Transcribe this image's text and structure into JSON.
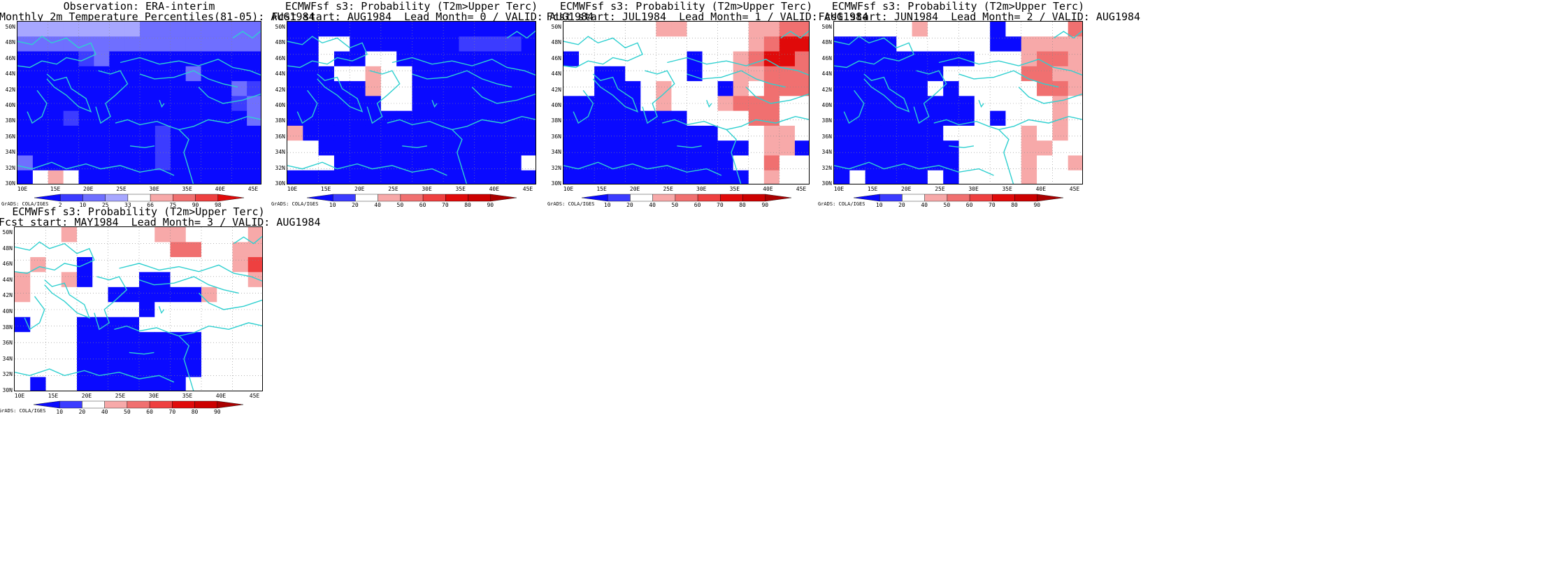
{
  "colors": {
    "coast": "#2fd0d0",
    "blue_dark": "#0a0aff",
    "blue_mid": "#3c3cff",
    "blue_light": "#6f6fff",
    "blue_pale": "#a7a7ff",
    "red_pale": "#f7a9a9",
    "red_mid": "#f07070",
    "red": "#ee4040",
    "red_dark": "#e00a0a",
    "white": "#ffffff"
  },
  "grads_label": "GrADS: COLA/IGES",
  "lat_labels": [
    "50N",
    "48N",
    "46N",
    "44N",
    "42N",
    "40N",
    "38N",
    "36N",
    "34N",
    "32N",
    "30N"
  ],
  "lon_labels": [
    "10E",
    "15E",
    "20E",
    "25E",
    "30E",
    "35E",
    "40E",
    "45E"
  ],
  "panels": [
    {
      "title": "Observation: ERA-interim\nMonthly 2m Temperature Percentiles(81-05): AUG1984",
      "colorbar_labels": [
        "2",
        "10",
        "25",
        "33",
        "66",
        "75",
        "90",
        "98"
      ],
      "colorbar_colors": [
        "#0a0aff",
        "#3c3cff",
        "#6f6fff",
        "#a7a7ff",
        "#ffffff",
        "#f7a9a9",
        "#f07070",
        "#ee4040",
        "#e00a0a"
      ]
    },
    {
      "title": "ECMWFsf s3: Probability (T2m>Upper Terc)\nFcst start: AUG1984  Lead Month= 0 / VALID: AUG1984",
      "colorbar_labels": [
        "10",
        "20",
        "40",
        "50",
        "60",
        "70",
        "80",
        "90"
      ],
      "colorbar_colors": [
        "#0a0aff",
        "#3c3cff",
        "#ffffff",
        "#f7a9a9",
        "#f07070",
        "#ee4040",
        "#e00a0a",
        "#cc0000",
        "#aa0000"
      ]
    },
    {
      "title": "ECMWFsf s3: Probability (T2m>Upper Terc)\nFcst start: JUL1984  Lead Month= 1 / VALID: AUG1984",
      "colorbar_labels": [
        "10",
        "20",
        "40",
        "50",
        "60",
        "70",
        "80",
        "90"
      ],
      "colorbar_colors": [
        "#0a0aff",
        "#3c3cff",
        "#ffffff",
        "#f7a9a9",
        "#f07070",
        "#ee4040",
        "#e00a0a",
        "#cc0000",
        "#aa0000"
      ]
    },
    {
      "title": "ECMWFsf s3: Probability (T2m>Upper Terc)\nFcst start: JUN1984  Lead Month= 2 / VALID: AUG1984",
      "colorbar_labels": [
        "10",
        "20",
        "40",
        "50",
        "60",
        "70",
        "80",
        "90"
      ],
      "colorbar_colors": [
        "#0a0aff",
        "#3c3cff",
        "#ffffff",
        "#f7a9a9",
        "#f07070",
        "#ee4040",
        "#e00a0a",
        "#cc0000",
        "#aa0000"
      ]
    },
    {
      "title": "ECMWFsf s3: Probability (T2m>Upper Terc)\nFcst start: MAY1984  Lead Month= 3 / VALID: AUG1984",
      "colorbar_labels": [
        "10",
        "20",
        "40",
        "50",
        "60",
        "70",
        "80",
        "90"
      ],
      "colorbar_colors": [
        "#0a0aff",
        "#3c3cff",
        "#ffffff",
        "#f7a9a9",
        "#f07070",
        "#ee4040",
        "#e00a0a",
        "#cc0000",
        "#aa0000"
      ]
    }
  ],
  "grids": {
    "legend": "B=dark blue b=mid blue l=light blue p=pale blue .=white r=pale red m=mid red R=red D=dark red",
    "panel0": [
      "ppppppppllllllll",
      "llllllllllllllll",
      "BBBBblBBBBBBBBBB",
      "BBBBBBBBBBBlBBBB",
      "BBBBBBBBBBBBBBlb",
      "BBBBBBBBBBBBBBbl",
      "BBBbBBBBBBBBBBBl",
      "BBBBBBBBBbBBBBBB",
      "BBBBBBBBBbBBBBBB",
      "lBBBBBBBBbBBBBBB",
      "B.r.BBBBBBBBBBBB"
    ],
    "panel1": [
      "BBBBBBBBBBBBBBBB",
      "BB..BBBBBBBbbbbB",
      "BB.BB..BBBBBBBBB",
      "BBB..r..BBBBBBBB",
      "BBBBBr..BBBBBBBB",
      "BBBBBB..BBBBBBBB",
      "BBBBBBBBBBBBBBBB",
      "rBBBBBBBBBBBBBBB",
      "..BBBBBBBBBBBBBB",
      "...BBBBBBBBBBBB.",
      "BBBBBBBBBBBBBBBB"
    ],
    "panel2": [
      "......rr....rrmm",
      "............rmDD",
      "B.......B..rmDDm",
      "..BB....B..rrmmm",
      "..BBB.r...Br.mmm",
      "BBBBB.r...rmmm..",
      "BBBBBBBB....mm..",
      "BBBBBBBBBB...rr.",
      "BBBBBBBBBBBB.rrB",
      "BBBBBBBBBBB..m..",
      "BBBBBBBBBBBB.r.."
    ],
    "panel3": [
      ".....r....B....m",
      "BBBB......BBrrrr",
      "BBBBBBBBB...rmmr",
      "BBBBBBB.....mmrr",
      "BBBBBB.B.....mmr",
      "BBBBBBBBB.....r.",
      "BBBBBBBBB.B...r.",
      "BBBBBBB.....r.r.",
      "BBBBBBBB....rr..",
      "BBBBBBBB....r..r",
      "B.BBBB.B....r..."
    ],
    "panel4": [
      "...r.....rr....r",
      "..........mm..rr",
      ".r..B.........rR",
      "r..rB...BB.....r",
      "r.....BBBBBBr...",
      "........B.......",
      "B...BBBB........",
      "....BBBBBBBB....",
      "....BBBBBBBB....",
      "....BBBBBBBB....",
      ".B..BBBBBBB....."
    ]
  }
}
